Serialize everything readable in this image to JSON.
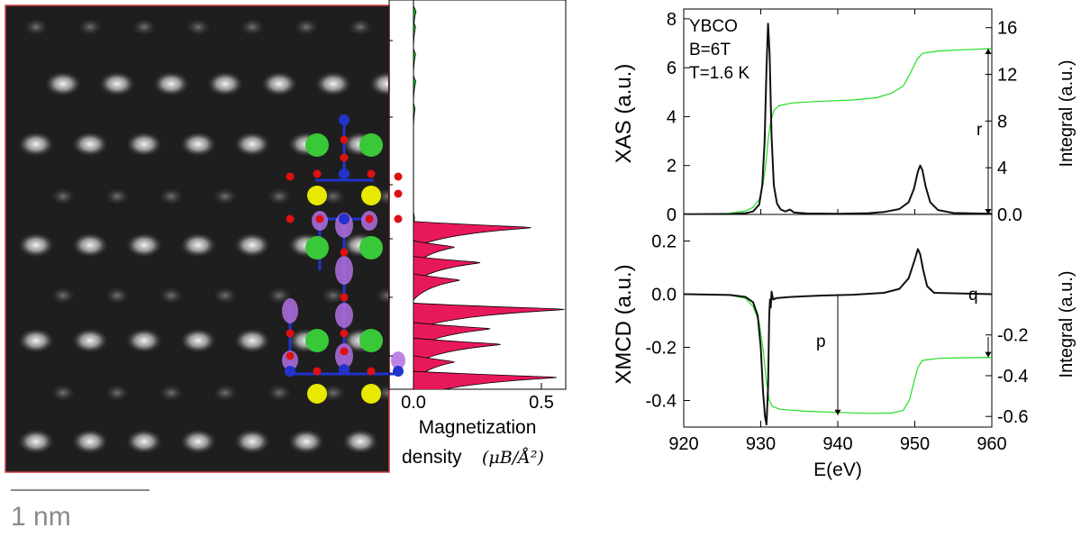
{
  "stem_image": {
    "scale_bar_label": "1 nm",
    "border_color": "#d23b3b"
  },
  "colors": {
    "xmcd_positive": "#e8195a",
    "xmcd_negative": "#12c81e",
    "integral": "#22dd22",
    "spectrum": "#111111",
    "atom_green": "#38c838",
    "atom_yellow": "#e8e800",
    "atom_red": "#dd1111",
    "atom_blue": "#2233cc",
    "orbital_purple": "#b070e0"
  },
  "chart_data": [
    {
      "type": "area",
      "orientation": "horizontal",
      "xlabel_line1": "Magnetization",
      "xlabel_line2": "density",
      "xlabel_unit": "(μB/Å²)",
      "xlim": [
        0,
        0.6
      ],
      "xticks": [
        "0.0",
        "0.5"
      ],
      "series": [
        {
          "values": [
            {
              "depth": 0.03,
              "m": 0.01
            },
            {
              "depth": 0.07,
              "m": 0.008
            },
            {
              "depth": 0.14,
              "m": 0.008
            },
            {
              "depth": 0.21,
              "m": 0.009
            },
            {
              "depth": 0.28,
              "m": 0.006
            },
            {
              "depth": 0.56,
              "m": 0.004
            }
          ]
        },
        {
          "values": [
            {
              "depth": 0.585,
              "m": 0.46
            },
            {
              "depth": 0.635,
              "m": 0.16
            },
            {
              "depth": 0.675,
              "m": 0.26
            },
            {
              "depth": 0.72,
              "m": 0.18
            },
            {
              "depth": 0.795,
              "m": 0.59
            },
            {
              "depth": 0.845,
              "m": 0.3
            },
            {
              "depth": 0.885,
              "m": 0.34
            },
            {
              "depth": 0.93,
              "m": 0.16
            },
            {
              "depth": 0.97,
              "m": 0.56
            }
          ]
        }
      ]
    },
    {
      "type": "line",
      "annotation_lines": [
        "YBCO",
        "B=6T",
        "T=1.6 K"
      ],
      "ylabel": "XAS (a.u.)",
      "ylabel_right": "Integral (a.u.)",
      "xlim": [
        920,
        960
      ],
      "ylim": [
        0,
        8.4
      ],
      "ylim_right": [
        0,
        17.6
      ],
      "yticks": [
        "0",
        "2",
        "4",
        "6",
        "8"
      ],
      "yticks_right": [
        "0.0",
        "4",
        "8",
        "12",
        "16"
      ],
      "marker_label": "r",
      "series": [
        {
          "values": [
            [
              920,
              0.01
            ],
            [
              926,
              0.02
            ],
            [
              928,
              0.05
            ],
            [
              929,
              0.12
            ],
            [
              929.8,
              0.4
            ],
            [
              930.2,
              1.2
            ],
            [
              930.5,
              3.0
            ],
            [
              930.75,
              6.0
            ],
            [
              930.95,
              7.8
            ],
            [
              931.15,
              6.6
            ],
            [
              931.4,
              3.2
            ],
            [
              931.7,
              1.2
            ],
            [
              932.1,
              0.45
            ],
            [
              932.6,
              0.2
            ],
            [
              933.2,
              0.12
            ],
            [
              933.8,
              0.2
            ],
            [
              934.3,
              0.08
            ],
            [
              936,
              0.04
            ],
            [
              940,
              0.03
            ],
            [
              944,
              0.05
            ],
            [
              946,
              0.1
            ],
            [
              948,
              0.22
            ],
            [
              949.2,
              0.5
            ],
            [
              949.9,
              1.05
            ],
            [
              950.4,
              1.75
            ],
            [
              950.7,
              2.0
            ],
            [
              951.0,
              1.8
            ],
            [
              951.4,
              1.15
            ],
            [
              952,
              0.5
            ],
            [
              953,
              0.18
            ],
            [
              955,
              0.06
            ],
            [
              960,
              0.03
            ]
          ]
        },
        {
          "values": [
            [
              920,
              0.0
            ],
            [
              926,
              0.1
            ],
            [
              928,
              0.3
            ],
            [
              929,
              0.6
            ],
            [
              929.8,
              1.3
            ],
            [
              930.3,
              2.6
            ],
            [
              930.7,
              4.6
            ],
            [
              931.0,
              6.6
            ],
            [
              931.3,
              8.0
            ],
            [
              931.7,
              8.9
            ],
            [
              932.3,
              9.3
            ],
            [
              934,
              9.55
            ],
            [
              938,
              9.7
            ],
            [
              942,
              9.8
            ],
            [
              945,
              10.0
            ],
            [
              947,
              10.4
            ],
            [
              948.5,
              11.0
            ],
            [
              949.5,
              12.2
            ],
            [
              950.3,
              13.3
            ],
            [
              951,
              13.8
            ],
            [
              953,
              14.0
            ],
            [
              956,
              14.1
            ],
            [
              960,
              14.2
            ]
          ]
        }
      ]
    },
    {
      "type": "line",
      "ylabel": "XMCD (a.u.)",
      "ylabel_right": "Integral (a.u.)",
      "xlabel": "E(eV)",
      "xlim": [
        920,
        960
      ],
      "xticks": [
        "920",
        "930",
        "940",
        "950",
        "960"
      ],
      "ylim": [
        -0.5,
        0.3
      ],
      "ylim_right": [
        -0.656,
        0
      ],
      "yticks": [
        "-0.4",
        "-0.2",
        "0.0",
        "0.2"
      ],
      "yticks_right": [
        "-0.6",
        "-0.4",
        "-0.2"
      ],
      "marker_labels": [
        "p",
        "q"
      ],
      "series": [
        {
          "values": [
            [
              920,
              0.0
            ],
            [
              926,
              -0.003
            ],
            [
              928,
              -0.01
            ],
            [
              929,
              -0.03
            ],
            [
              929.6,
              -0.08
            ],
            [
              930.0,
              -0.2
            ],
            [
              930.3,
              -0.37
            ],
            [
              930.55,
              -0.46
            ],
            [
              930.75,
              -0.49
            ],
            [
              930.95,
              -0.35
            ],
            [
              931.1,
              -0.08
            ],
            [
              931.2,
              -0.02
            ],
            [
              931.3,
              -0.05
            ],
            [
              931.4,
              0.01
            ],
            [
              931.6,
              -0.02
            ],
            [
              932,
              -0.015
            ],
            [
              934,
              -0.01
            ],
            [
              938,
              -0.005
            ],
            [
              942,
              -0.002
            ],
            [
              946,
              0.005
            ],
            [
              948,
              0.02
            ],
            [
              949.2,
              0.06
            ],
            [
              950.0,
              0.13
            ],
            [
              950.4,
              0.17
            ],
            [
              950.7,
              0.15
            ],
            [
              951.1,
              0.09
            ],
            [
              951.6,
              0.03
            ],
            [
              952.5,
              0.005
            ],
            [
              960,
              0.0
            ]
          ]
        },
        {
          "values": [
            [
              920,
              -0.001
            ],
            [
              926,
              -0.005
            ],
            [
              928,
              -0.02
            ],
            [
              929,
              -0.06
            ],
            [
              929.8,
              -0.14
            ],
            [
              930.3,
              -0.27
            ],
            [
              930.7,
              -0.42
            ],
            [
              931.1,
              -0.52
            ],
            [
              931.5,
              -0.55
            ],
            [
              932.5,
              -0.565
            ],
            [
              936,
              -0.575
            ],
            [
              940,
              -0.58
            ],
            [
              944,
              -0.585
            ],
            [
              947,
              -0.583
            ],
            [
              948.5,
              -0.57
            ],
            [
              949.3,
              -0.52
            ],
            [
              949.9,
              -0.43
            ],
            [
              950.4,
              -0.36
            ],
            [
              951,
              -0.325
            ],
            [
              953,
              -0.315
            ],
            [
              956,
              -0.312
            ],
            [
              960,
              -0.31
            ]
          ]
        }
      ]
    }
  ]
}
